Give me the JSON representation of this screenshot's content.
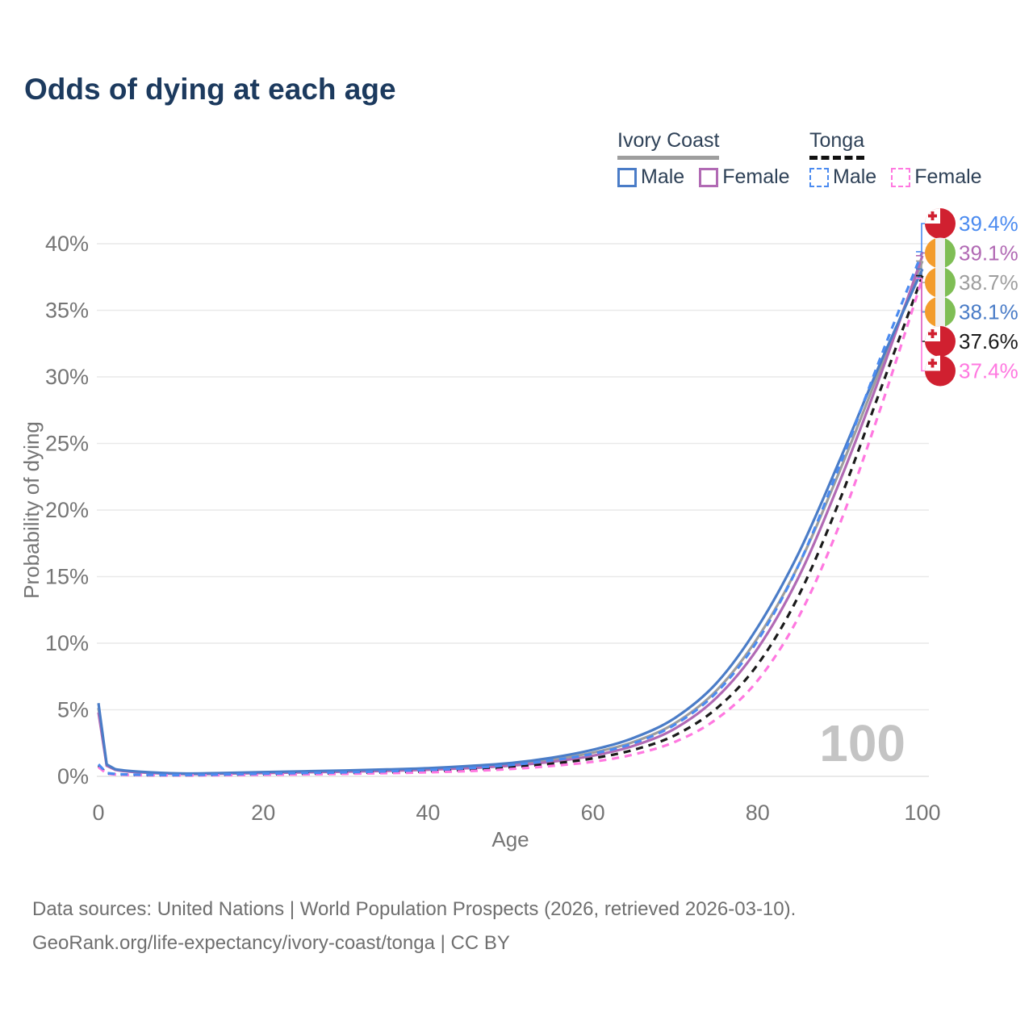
{
  "title": "Odds of dying at each age",
  "legend": {
    "ivory_coast": {
      "country": "Ivory Coast",
      "line_style": "solid",
      "both_sexes_color": "#9e9e9e",
      "male_label": "Male",
      "male_color": "#4a7cc7",
      "female_label": "Female",
      "female_color": "#b16ab4"
    },
    "tonga": {
      "country": "Tonga",
      "line_style": "dashed",
      "both_sexes_color": "#1a1a1a",
      "male_label": "Male",
      "male_color": "#4b8bf0",
      "female_label": "Female",
      "female_color": "#ff78e0"
    }
  },
  "watermark": "100",
  "chart_data": {
    "type": "line",
    "title": "Odds of dying at each age",
    "xlabel": "Age",
    "ylabel": "Probability of dying",
    "xlim": [
      0,
      100
    ],
    "ylim": [
      0,
      42
    ],
    "x_tick_values": [
      0,
      20,
      40,
      60,
      80,
      100
    ],
    "x_tick_labels": [
      "0",
      "20",
      "40",
      "60",
      "80",
      "100"
    ],
    "y_tick_values": [
      0,
      5,
      10,
      15,
      20,
      25,
      30,
      35,
      40
    ],
    "y_tick_labels": [
      "0%",
      "5%",
      "10%",
      "15%",
      "20%",
      "25%",
      "30%",
      "35%",
      "40%"
    ],
    "grid": "horizontal-only",
    "legend_position": "top-right",
    "ages": [
      0,
      1,
      2,
      5,
      10,
      15,
      20,
      25,
      30,
      35,
      40,
      45,
      50,
      55,
      60,
      65,
      70,
      75,
      80,
      85,
      90,
      95,
      100
    ],
    "series": [
      {
        "id": "ic_male",
        "name": "Ivory Coast Male",
        "country": "Ivory Coast",
        "sex": "Male",
        "color": "#4a7cc7",
        "dash": false,
        "flag": "ivory-coast",
        "end_label": "38.1%",
        "values": [
          5.5,
          0.9,
          0.55,
          0.35,
          0.22,
          0.25,
          0.32,
          0.38,
          0.44,
          0.52,
          0.62,
          0.78,
          1.0,
          1.4,
          2.0,
          2.9,
          4.4,
          7.0,
          11.2,
          16.8,
          23.8,
          31.2,
          38.1
        ]
      },
      {
        "id": "ic_female",
        "name": "Ivory Coast Female",
        "country": "Ivory Coast",
        "sex": "Female",
        "color": "#b16ab4",
        "dash": false,
        "flag": "ivory-coast",
        "end_label": "39.1%",
        "values": [
          4.8,
          0.8,
          0.5,
          0.3,
          0.18,
          0.2,
          0.25,
          0.3,
          0.35,
          0.42,
          0.5,
          0.62,
          0.8,
          1.1,
          1.55,
          2.3,
          3.6,
          5.9,
          9.6,
          15.0,
          22.2,
          30.3,
          39.1
        ]
      },
      {
        "id": "ic_both",
        "name": "Ivory Coast Both sexes",
        "country": "Ivory Coast",
        "sex": "Both",
        "color": "#9e9e9e",
        "dash": false,
        "flag": "ivory-coast",
        "end_label": "38.7%",
        "values": [
          5.15,
          0.85,
          0.52,
          0.32,
          0.2,
          0.22,
          0.28,
          0.34,
          0.4,
          0.47,
          0.56,
          0.7,
          0.9,
          1.25,
          1.78,
          2.6,
          4.0,
          6.45,
          10.4,
          15.9,
          23.0,
          30.8,
          38.7
        ]
      },
      {
        "id": "tonga_male",
        "name": "Tonga Male",
        "country": "Tonga",
        "sex": "Male",
        "color": "#4b8bf0",
        "dash": true,
        "flag": "tonga",
        "end_label": "39.4%",
        "values": [
          0.9,
          0.25,
          0.18,
          0.12,
          0.1,
          0.14,
          0.2,
          0.25,
          0.3,
          0.38,
          0.48,
          0.62,
          0.85,
          1.2,
          1.7,
          2.5,
          3.9,
          6.3,
          10.2,
          15.9,
          23.4,
          31.6,
          39.4
        ]
      },
      {
        "id": "tonga_female",
        "name": "Tonga Female",
        "country": "Tonga",
        "sex": "Female",
        "color": "#ff78e0",
        "dash": true,
        "flag": "tonga",
        "end_label": "37.4%",
        "values": [
          0.7,
          0.2,
          0.14,
          0.09,
          0.07,
          0.09,
          0.12,
          0.15,
          0.19,
          0.24,
          0.3,
          0.4,
          0.55,
          0.78,
          1.1,
          1.65,
          2.6,
          4.3,
          7.2,
          12.0,
          19.0,
          27.8,
          37.4
        ]
      },
      {
        "id": "tonga_both",
        "name": "Tonga Both sexes",
        "country": "Tonga",
        "sex": "Both",
        "color": "#1a1a1a",
        "dash": true,
        "flag": "tonga",
        "end_label": "37.6%",
        "values": [
          0.8,
          0.22,
          0.16,
          0.1,
          0.08,
          0.11,
          0.15,
          0.19,
          0.24,
          0.3,
          0.38,
          0.5,
          0.68,
          0.95,
          1.35,
          2.0,
          3.1,
          5.1,
          8.4,
          13.6,
          20.8,
          29.2,
          37.6
        ]
      }
    ],
    "end_labels_top_to_bottom": [
      "39.4%",
      "39.1%",
      "38.7%",
      "38.1%",
      "37.6%",
      "37.4%"
    ]
  },
  "colors": {
    "title": "#1c3a5e",
    "axis_text": "#757575",
    "gridline": "#e9e9e9",
    "watermark": "#c4c4c4",
    "flag_tonga_red": "#d02030",
    "flag_ic_orange": "#f39c2c",
    "flag_ic_green": "#7fbe55"
  },
  "footer": {
    "line1": "Data sources: United Nations | World Population Prospects (2026, retrieved 2026-03-10).",
    "line2": "GeoRank.org/life-expectancy/ivory-coast/tonga | CC BY"
  }
}
